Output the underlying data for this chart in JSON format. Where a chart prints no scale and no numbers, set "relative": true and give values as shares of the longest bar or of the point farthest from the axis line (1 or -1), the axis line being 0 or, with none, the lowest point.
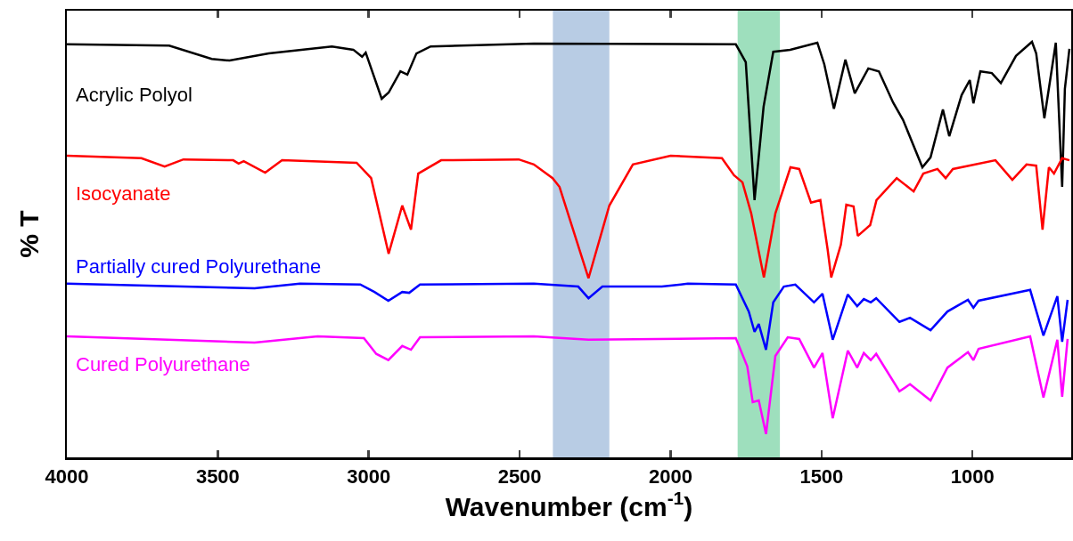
{
  "chart_data": {
    "type": "line",
    "relative": true,
    "xlabel": "Wavenumber (cm$^{-1}$)",
    "ylabel": "% T",
    "xlim": [
      4000,
      673
    ],
    "xticks": [
      4000,
      3500,
      3000,
      2500,
      2000,
      1500,
      1000
    ],
    "grid": false,
    "line_style": "solid",
    "marker": "none",
    "bands": [
      {
        "axis": "x",
        "from": 2390,
        "to": 2203,
        "color": "#b8cce4"
      },
      {
        "axis": "x",
        "from": 1778,
        "to": 1638,
        "color": "#9edfbd"
      }
    ],
    "series": [
      {
        "name": "Acrylic Polyol",
        "color": "#000000",
        "x": [
          4000,
          3661,
          3520,
          3461,
          3331,
          3122,
          3051,
          3022,
          3010,
          2957,
          2934,
          2895,
          2872,
          2842,
          2795,
          2453,
          1784,
          1751,
          1722,
          1692,
          1660,
          1604,
          1514,
          1491,
          1459,
          1421,
          1390,
          1345,
          1310,
          1263,
          1230,
          1166,
          1139,
          1098,
          1077,
          1036,
          1009,
          997,
          974,
          936,
          906,
          856,
          803,
          789,
          762,
          724,
          703,
          694,
          679
        ],
        "values": [
          0.994,
          0.991,
          0.959,
          0.955,
          0.972,
          0.989,
          0.981,
          0.964,
          0.974,
          0.863,
          0.878,
          0.929,
          0.921,
          0.972,
          0.989,
          0.996,
          0.994,
          0.951,
          0.619,
          0.844,
          0.976,
          0.981,
          0.998,
          0.946,
          0.839,
          0.957,
          0.876,
          0.936,
          0.929,
          0.854,
          0.812,
          0.698,
          0.722,
          0.837,
          0.773,
          0.872,
          0.908,
          0.852,
          0.929,
          0.925,
          0.901,
          0.966,
          1.0,
          0.972,
          0.816,
          0.998,
          0.651,
          0.887,
          0.983
        ]
      },
      {
        "name": "Isocyanate",
        "color": "#ff0000",
        "x": [
          4000,
          3753,
          3676,
          3614,
          3449,
          3431,
          3414,
          3343,
          3287,
          3040,
          2992,
          2934,
          2889,
          2860,
          2836,
          2760,
          2503,
          2453,
          2391,
          2368,
          2272,
          2203,
          2125,
          2000,
          1830,
          1790,
          1762,
          1733,
          1691,
          1653,
          1603,
          1574,
          1535,
          1504,
          1480,
          1468,
          1436,
          1418,
          1394,
          1380,
          1339,
          1318,
          1251,
          1195,
          1163,
          1116,
          1089,
          1065,
          924,
          868,
          821,
          789,
          768,
          747,
          730,
          703,
          679
        ],
        "values": [
          0.726,
          0.72,
          0.7,
          0.717,
          0.715,
          0.707,
          0.713,
          0.685,
          0.715,
          0.709,
          0.672,
          0.49,
          0.606,
          0.548,
          0.683,
          0.715,
          0.717,
          0.705,
          0.672,
          0.651,
          0.431,
          0.606,
          0.705,
          0.726,
          0.72,
          0.679,
          0.662,
          0.587,
          0.433,
          0.587,
          0.698,
          0.694,
          0.613,
          0.619,
          0.501,
          0.433,
          0.512,
          0.608,
          0.604,
          0.533,
          0.559,
          0.619,
          0.672,
          0.64,
          0.683,
          0.694,
          0.672,
          0.694,
          0.715,
          0.668,
          0.705,
          0.702,
          0.548,
          0.698,
          0.683,
          0.72,
          0.715
        ]
      },
      {
        "name": "Partially cured Polyurethane",
        "color": "#0000ff",
        "x": [
          4000,
          3378,
          3228,
          3028,
          2981,
          2935,
          2889,
          2866,
          2830,
          2453,
          2306,
          2272,
          2226,
          2159,
          2029,
          1943,
          1784,
          1741,
          1722,
          1708,
          1684,
          1660,
          1625,
          1587,
          1525,
          1497,
          1463,
          1413,
          1382,
          1360,
          1337,
          1319,
          1242,
          1207,
          1139,
          1083,
          1015,
          997,
          980,
          809,
          765,
          719,
          703,
          685
        ],
        "values": [
          0.418,
          0.407,
          0.418,
          0.416,
          0.398,
          0.377,
          0.398,
          0.396,
          0.416,
          0.418,
          0.411,
          0.383,
          0.411,
          0.411,
          0.411,
          0.418,
          0.416,
          0.351,
          0.302,
          0.321,
          0.259,
          0.373,
          0.411,
          0.416,
          0.373,
          0.394,
          0.283,
          0.392,
          0.364,
          0.381,
          0.373,
          0.383,
          0.326,
          0.336,
          0.306,
          0.351,
          0.379,
          0.36,
          0.377,
          0.403,
          0.293,
          0.388,
          0.278,
          0.379
        ]
      },
      {
        "name": "Cured Polyurethane",
        "color": "#ff00ff",
        "x": [
          4000,
          3378,
          3169,
          3016,
          2975,
          2935,
          2889,
          2860,
          2830,
          2453,
          2272,
          1784,
          1746,
          1728,
          1708,
          1684,
          1653,
          1612,
          1574,
          1525,
          1497,
          1463,
          1413,
          1382,
          1360,
          1337,
          1319,
          1242,
          1207,
          1139,
          1083,
          1015,
          997,
          980,
          809,
          765,
          719,
          703,
          685
        ],
        "values": [
          0.291,
          0.276,
          0.291,
          0.287,
          0.249,
          0.234,
          0.268,
          0.259,
          0.289,
          0.291,
          0.283,
          0.287,
          0.219,
          0.133,
          0.137,
          0.056,
          0.244,
          0.289,
          0.285,
          0.216,
          0.251,
          0.094,
          0.257,
          0.216,
          0.251,
          0.234,
          0.249,
          0.159,
          0.176,
          0.137,
          0.216,
          0.253,
          0.234,
          0.261,
          0.291,
          0.144,
          0.283,
          0.146,
          0.285
        ]
      }
    ]
  }
}
